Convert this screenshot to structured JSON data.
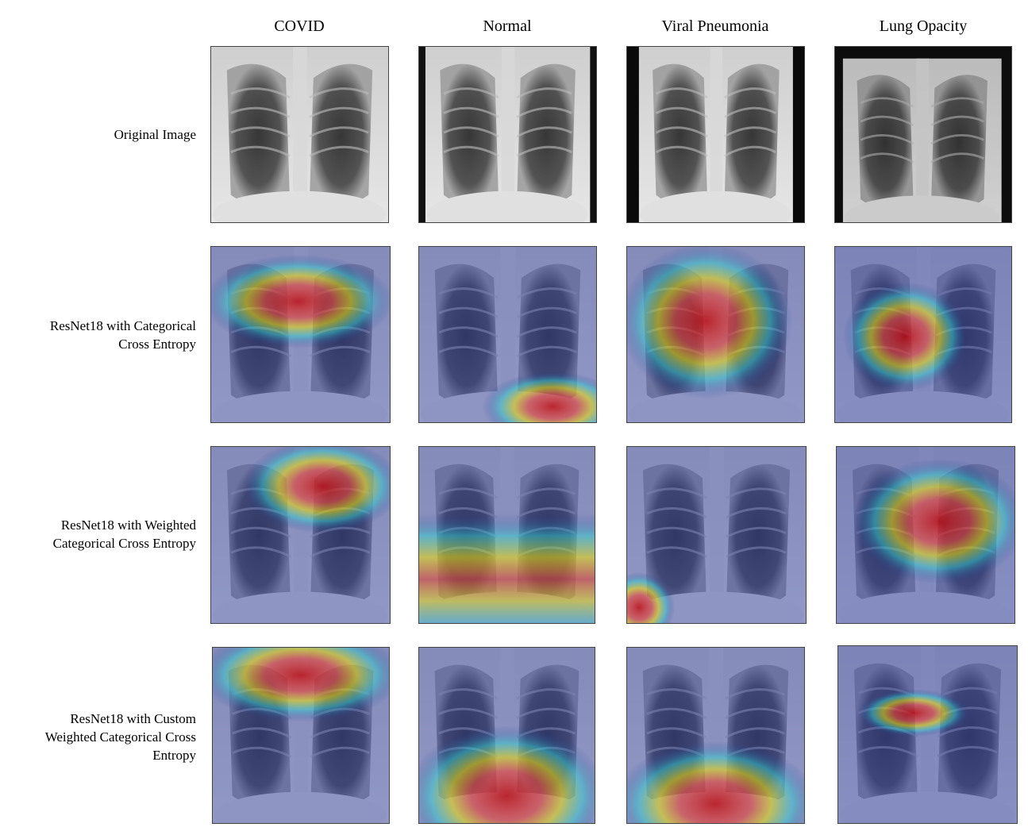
{
  "columns": [
    {
      "label": "COVID"
    },
    {
      "label": "Normal"
    },
    {
      "label": "Viral Pneumonia"
    },
    {
      "label": "Lung Opacity"
    }
  ],
  "rows": [
    {
      "label": "Original Image",
      "overlay": "none"
    },
    {
      "label": "ResNet18 with Categorical\nCross Entropy",
      "overlay": "grad-cam heatmap"
    },
    {
      "label": "ResNet18 with Weighted\nCategorical Cross Entropy",
      "overlay": "grad-cam heatmap"
    },
    {
      "label": "ResNet18 with Custom\nWeighted Categorical Cross\nEntropy",
      "overlay": "grad-cam heatmap"
    }
  ],
  "images": [
    {
      "name": "covid-original",
      "type": "chest-xray"
    },
    {
      "name": "normal-original",
      "type": "chest-xray"
    },
    {
      "name": "viral-pneumonia-original",
      "type": "chest-xray"
    },
    {
      "name": "lung-opacity-original",
      "type": "chest-xray"
    }
  ],
  "colors": {
    "heat_hot": "#c80000",
    "heat_warm": "#f0e000",
    "heat_mid": "#30d0d0",
    "heat_cool": "#1e2a8a"
  }
}
